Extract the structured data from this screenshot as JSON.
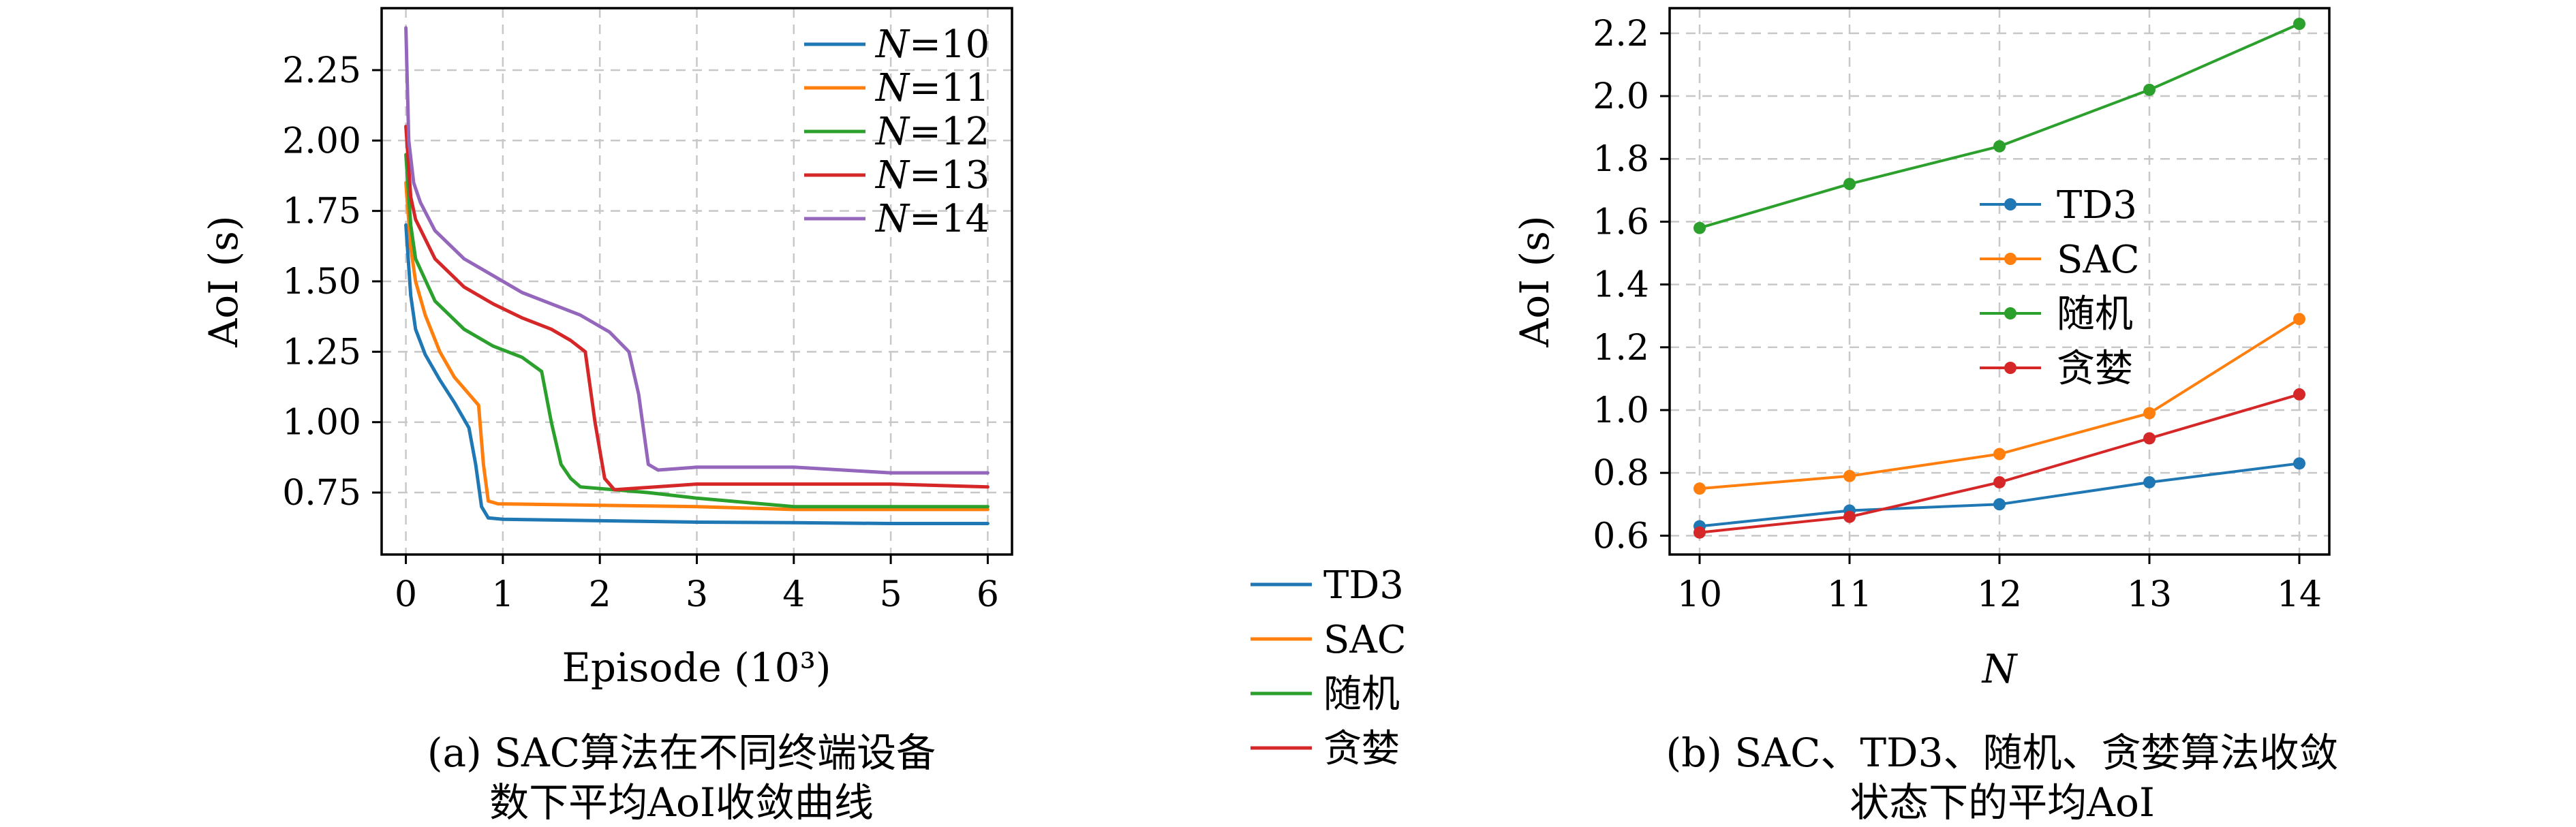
{
  "chart_data": [
    {
      "type": "line",
      "caption_lines": [
        "(a) SAC算法在不同终端设备",
        "数下平均AoI收敛曲线"
      ],
      "xlabel": "Episode (10³)",
      "ylabel": "AoI (s)",
      "xlim": [
        -0.25,
        6.25
      ],
      "ylim": [
        0.53,
        2.47
      ],
      "x_ticks": [
        0,
        1,
        2,
        3,
        4,
        5,
        6
      ],
      "y_ticks": [
        0.75,
        1.0,
        1.25,
        1.5,
        1.75,
        2.0,
        2.25
      ],
      "y_tick_labels": [
        "0.75",
        "1.00",
        "1.25",
        "1.50",
        "1.75",
        "2.00",
        "2.25"
      ],
      "grid": true,
      "legend_position": "top-right",
      "series": [
        {
          "name": "N=10",
          "legend_var": "N",
          "legend_val": "=10",
          "color": "#1f77b4",
          "x": [
            0,
            0.05,
            0.1,
            0.2,
            0.35,
            0.5,
            0.65,
            0.72,
            0.78,
            0.85,
            1.0,
            2.0,
            3.0,
            4.0,
            5.0,
            6.0
          ],
          "y": [
            1.7,
            1.45,
            1.33,
            1.24,
            1.15,
            1.07,
            0.98,
            0.85,
            0.7,
            0.66,
            0.655,
            0.65,
            0.645,
            0.643,
            0.64,
            0.64
          ]
        },
        {
          "name": "N=11",
          "legend_var": "N",
          "legend_val": "=11",
          "color": "#ff7f0e",
          "x": [
            0,
            0.05,
            0.1,
            0.2,
            0.35,
            0.5,
            0.65,
            0.75,
            0.8,
            0.85,
            0.95,
            2.0,
            3.0,
            4.0,
            5.0,
            6.0
          ],
          "y": [
            1.85,
            1.62,
            1.5,
            1.38,
            1.25,
            1.16,
            1.1,
            1.06,
            0.85,
            0.72,
            0.71,
            0.705,
            0.7,
            0.69,
            0.69,
            0.69
          ]
        },
        {
          "name": "N=12",
          "legend_var": "N",
          "legend_val": "=12",
          "color": "#2ca02c",
          "x": [
            0,
            0.05,
            0.1,
            0.3,
            0.6,
            0.9,
            1.2,
            1.4,
            1.5,
            1.6,
            1.7,
            1.8,
            2.5,
            3.0,
            4.0,
            5.0,
            6.0
          ],
          "y": [
            1.95,
            1.7,
            1.58,
            1.43,
            1.33,
            1.27,
            1.23,
            1.18,
            1.0,
            0.85,
            0.8,
            0.77,
            0.75,
            0.73,
            0.7,
            0.7,
            0.7
          ]
        },
        {
          "name": "N=13",
          "legend_var": "N",
          "legend_val": "=13",
          "color": "#d62728",
          "x": [
            0,
            0.05,
            0.1,
            0.3,
            0.6,
            0.9,
            1.2,
            1.5,
            1.7,
            1.85,
            1.95,
            2.05,
            2.15,
            3.0,
            4.0,
            5.0,
            6.0
          ],
          "y": [
            2.05,
            1.8,
            1.72,
            1.58,
            1.48,
            1.42,
            1.37,
            1.33,
            1.29,
            1.25,
            1.0,
            0.8,
            0.76,
            0.78,
            0.78,
            0.78,
            0.77
          ]
        },
        {
          "name": "N=14",
          "legend_var": "N",
          "legend_val": "=14",
          "color": "#9467bd",
          "x": [
            0,
            0.03,
            0.08,
            0.15,
            0.3,
            0.6,
            0.9,
            1.2,
            1.5,
            1.8,
            2.1,
            2.3,
            2.4,
            2.5,
            2.6,
            3.0,
            4.0,
            5.0,
            6.0
          ],
          "y": [
            2.4,
            2.0,
            1.85,
            1.78,
            1.68,
            1.58,
            1.52,
            1.46,
            1.42,
            1.38,
            1.32,
            1.25,
            1.1,
            0.85,
            0.83,
            0.84,
            0.84,
            0.82,
            0.82
          ]
        }
      ]
    },
    {
      "type": "line",
      "caption_lines": [
        "(b) SAC、TD3、随机、贪婪算法收敛",
        "状态下的平均AoI"
      ],
      "xlabel": "N",
      "ylabel": "AoI (s)",
      "x": [
        10,
        11,
        12,
        13,
        14
      ],
      "xlim": [
        9.8,
        14.2
      ],
      "ylim": [
        0.54,
        2.28
      ],
      "x_ticks": [
        10,
        11,
        12,
        13,
        14
      ],
      "y_ticks": [
        0.6,
        0.8,
        1.0,
        1.2,
        1.4,
        1.6,
        1.8,
        2.0,
        2.2
      ],
      "y_tick_labels": [
        "0.6",
        "0.8",
        "1.0",
        "1.2",
        "1.4",
        "1.6",
        "1.8",
        "2.0",
        "2.2"
      ],
      "grid": true,
      "legend_position": "center-left",
      "series": [
        {
          "name": "TD3",
          "color": "#1f77b4",
          "values": [
            0.63,
            0.68,
            0.7,
            0.77,
            0.83
          ]
        },
        {
          "name": "SAC",
          "color": "#ff7f0e",
          "values": [
            0.75,
            0.79,
            0.86,
            0.99,
            1.29
          ]
        },
        {
          "name": "随机",
          "color": "#2ca02c",
          "values": [
            1.58,
            1.72,
            1.84,
            2.02,
            2.23
          ]
        },
        {
          "name": "贪婪",
          "color": "#d62728",
          "values": [
            0.61,
            0.66,
            0.77,
            0.91,
            1.05
          ]
        }
      ]
    }
  ],
  "shared_legend": {
    "entries": [
      {
        "label": "TD3",
        "color": "#1f77b4"
      },
      {
        "label": "SAC",
        "color": "#ff7f0e"
      },
      {
        "label": "随机",
        "color": "#2ca02c"
      },
      {
        "label": "贪婪",
        "color": "#d62728"
      }
    ]
  }
}
